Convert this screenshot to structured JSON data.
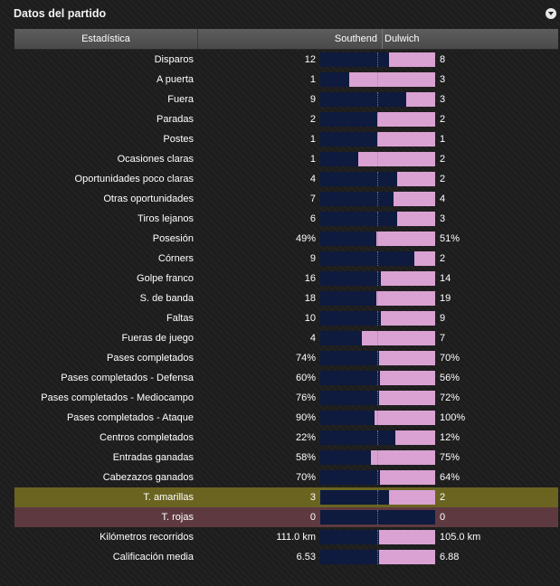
{
  "panel": {
    "title": "Datos del partido",
    "collapse_icon": "chevron-down-icon"
  },
  "header": {
    "stat": "Estadística",
    "home": "Southend",
    "away": "Dulwich"
  },
  "colors": {
    "home_bar": "#0e1a3e",
    "away_bar": "#d9a2d2",
    "yellow_row": "#6b6420",
    "red_row": "#5e3a40"
  },
  "rows": [
    {
      "label": "Disparos",
      "home": "12",
      "away": "8",
      "away_share": 0.4
    },
    {
      "label": "A puerta",
      "home": "1",
      "away": "3",
      "away_share": 0.75
    },
    {
      "label": "Fuera",
      "home": "9",
      "away": "3",
      "away_share": 0.25
    },
    {
      "label": "Paradas",
      "home": "2",
      "away": "2",
      "away_share": 0.5
    },
    {
      "label": "Postes",
      "home": "1",
      "away": "1",
      "away_share": 0.5
    },
    {
      "label": "Ocasiones claras",
      "home": "1",
      "away": "2",
      "away_share": 0.67
    },
    {
      "label": "Oportunidades poco claras",
      "home": "4",
      "away": "2",
      "away_share": 0.33
    },
    {
      "label": "Otras oportunidades",
      "home": "7",
      "away": "4",
      "away_share": 0.36
    },
    {
      "label": "Tiros lejanos",
      "home": "6",
      "away": "3",
      "away_share": 0.33
    },
    {
      "label": "Posesión",
      "home": "49%",
      "away": "51%",
      "away_share": 0.51
    },
    {
      "label": "Córners",
      "home": "9",
      "away": "2",
      "away_share": 0.18
    },
    {
      "label": "Golpe franco",
      "home": "16",
      "away": "14",
      "away_share": 0.47
    },
    {
      "label": "S. de banda",
      "home": "18",
      "away": "19",
      "away_share": 0.51
    },
    {
      "label": "Faltas",
      "home": "10",
      "away": "9",
      "away_share": 0.47
    },
    {
      "label": "Fueras de juego",
      "home": "4",
      "away": "7",
      "away_share": 0.64
    },
    {
      "label": "Pases completados",
      "home": "74%",
      "away": "70%",
      "away_share": 0.49
    },
    {
      "label": "Pases completados - Defensa",
      "home": "60%",
      "away": "56%",
      "away_share": 0.48
    },
    {
      "label": "Pases completados - Mediocampo",
      "home": "76%",
      "away": "72%",
      "away_share": 0.49
    },
    {
      "label": "Pases completados - Ataque",
      "home": "90%",
      "away": "100%",
      "away_share": 0.53
    },
    {
      "label": "Centros completados",
      "home": "22%",
      "away": "12%",
      "away_share": 0.35
    },
    {
      "label": "Entradas ganadas",
      "home": "58%",
      "away": "75%",
      "away_share": 0.56
    },
    {
      "label": "Cabezazos ganados",
      "home": "70%",
      "away": "64%",
      "away_share": 0.48
    },
    {
      "label": "T. amarillas",
      "home": "3",
      "away": "2",
      "away_share": 0.4,
      "highlight": "yellow"
    },
    {
      "label": "T. rojas",
      "home": "0",
      "away": "0",
      "away_share": 0.0,
      "highlight": "red"
    },
    {
      "label": "Kilómetros recorridos",
      "home": "111.0 km",
      "away": "105.0 km",
      "away_share": 0.49
    },
    {
      "label": "Calificación media",
      "home": "6.53",
      "away": "6.88",
      "away_share": 0.49
    }
  ]
}
